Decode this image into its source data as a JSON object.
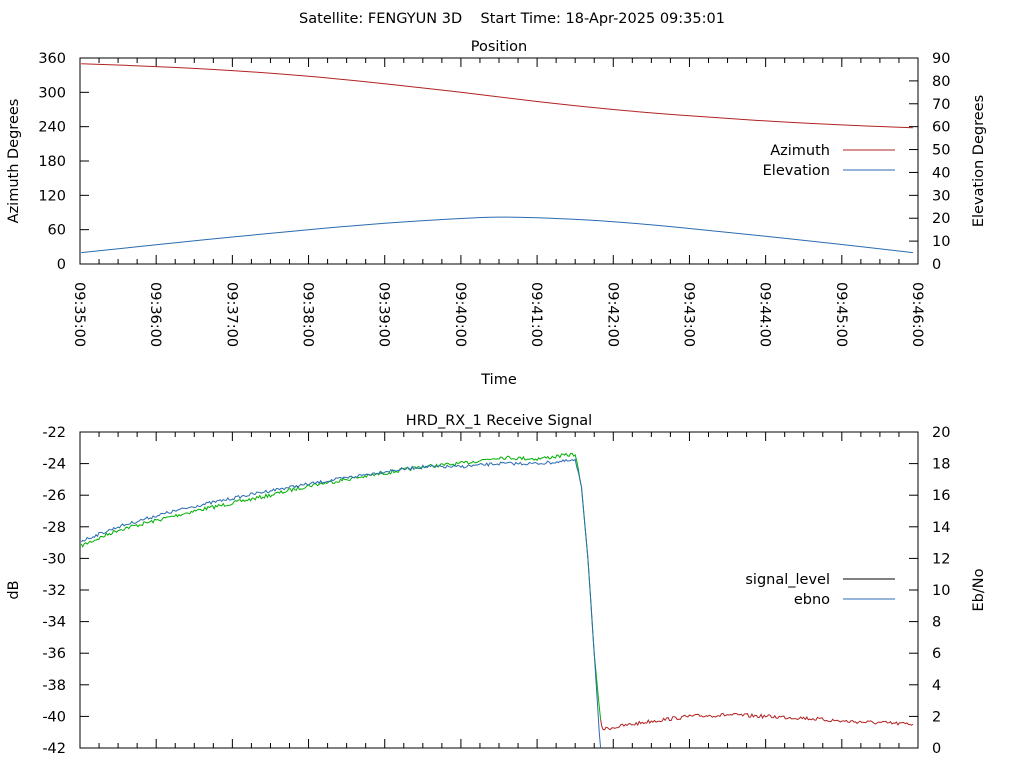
{
  "header": {
    "title": "Satellite: FENGYUN 3D    Start Time: 18-Apr-2025 09:35:01"
  },
  "chart_data": [
    {
      "type": "line",
      "title": "Position",
      "xlabel": "Time",
      "ylabel": "Azimuth Degrees",
      "y2label": "Elevation Degrees",
      "x_ticks": [
        "09:35:00",
        "09:36:00",
        "09:37:00",
        "09:38:00",
        "09:39:00",
        "09:40:00",
        "09:41:00",
        "09:42:00",
        "09:43:00",
        "09:44:00",
        "09:45:00",
        "09:46:00"
      ],
      "xlim": [
        "09:35:00",
        "09:46:00"
      ],
      "ylim": [
        0,
        360
      ],
      "y2lim": [
        0,
        90
      ],
      "y_ticks": [
        0,
        60,
        120,
        180,
        240,
        300,
        360
      ],
      "y2_ticks": [
        0,
        10,
        20,
        30,
        40,
        50,
        60,
        70,
        80,
        90
      ],
      "grid": false,
      "legend_position": "right-middle",
      "series": [
        {
          "name": "Azimuth",
          "axis": "y",
          "color": "#b22222",
          "x": [
            "09:35:01",
            "09:36:00",
            "09:37:00",
            "09:38:00",
            "09:39:00",
            "09:40:00",
            "09:41:00",
            "09:42:00",
            "09:43:00",
            "09:44:00",
            "09:45:00",
            "09:45:56"
          ],
          "values": [
            350,
            345,
            338,
            328,
            315,
            300,
            284,
            270,
            259,
            250,
            243,
            238
          ]
        },
        {
          "name": "Elevation",
          "axis": "y2",
          "color": "#2a6bb0",
          "x": [
            "09:35:01",
            "09:36:00",
            "09:37:00",
            "09:38:00",
            "09:39:00",
            "09:40:00",
            "09:40:30",
            "09:41:00",
            "09:42:00",
            "09:43:00",
            "09:44:00",
            "09:45:00",
            "09:45:56"
          ],
          "values": [
            5,
            8.4,
            11.8,
            15,
            17.8,
            19.9,
            20.5,
            20.2,
            18.5,
            15.5,
            12.1,
            8.5,
            5
          ]
        }
      ]
    },
    {
      "type": "line",
      "title": "HRD_RX_1 Receive Signal",
      "ylabel": "dB",
      "y2label": "Eb/No",
      "xlim": [
        "09:35:00",
        "09:46:00"
      ],
      "ylim": [
        -42,
        -22
      ],
      "y2lim": [
        0,
        20
      ],
      "y_ticks": [
        -42,
        -40,
        -38,
        -36,
        -34,
        -32,
        -30,
        -28,
        -26,
        -24,
        -22
      ],
      "y2_ticks": [
        0,
        2,
        4,
        6,
        8,
        10,
        12,
        14,
        16,
        18,
        20
      ],
      "grid": false,
      "legend_position": "right-middle",
      "series": [
        {
          "name": "signal_level",
          "axis": "y",
          "color": "#00b000",
          "color_after_loss": "#b22222",
          "x": [
            "09:35:01",
            "09:35:30",
            "09:36:00",
            "09:36:30",
            "09:37:00",
            "09:37:30",
            "09:38:00",
            "09:38:30",
            "09:39:00",
            "09:39:30",
            "09:40:00",
            "09:40:30",
            "09:41:00",
            "09:41:30",
            "09:41:35",
            "09:41:40",
            "09:41:45",
            "09:41:50",
            "09:41:52",
            "09:42:00",
            "09:42:30",
            "09:43:00",
            "09:43:30",
            "09:44:00",
            "09:44:30",
            "09:45:00",
            "09:45:30",
            "09:45:56"
          ],
          "values": [
            -29.2,
            -28.2,
            -27.6,
            -27.0,
            -26.5,
            -26.0,
            -25.4,
            -25.0,
            -24.6,
            -24.2,
            -24.0,
            -23.6,
            -23.7,
            -23.4,
            -25.5,
            -30.0,
            -36.0,
            -40.3,
            -40.8,
            -40.7,
            -40.3,
            -40.0,
            -39.9,
            -40.0,
            -40.1,
            -40.3,
            -40.4,
            -40.5
          ]
        },
        {
          "name": "ebno",
          "axis": "y",
          "color": "#2a6bb0",
          "x": [
            "09:35:01",
            "09:35:30",
            "09:36:00",
            "09:36:30",
            "09:37:00",
            "09:37:30",
            "09:38:00",
            "09:38:30",
            "09:39:00",
            "09:39:30",
            "09:40:00",
            "09:40:30",
            "09:41:00",
            "09:41:30",
            "09:41:35",
            "09:41:40",
            "09:41:45",
            "09:41:49",
            "09:41:50"
          ],
          "values": [
            -28.9,
            -28.0,
            -27.3,
            -26.7,
            -26.2,
            -25.7,
            -25.3,
            -24.9,
            -24.5,
            -24.2,
            -24.2,
            -24.0,
            -24.0,
            -23.8,
            -25.5,
            -30.0,
            -36.0,
            -41.0,
            -42.0
          ]
        }
      ]
    }
  ]
}
